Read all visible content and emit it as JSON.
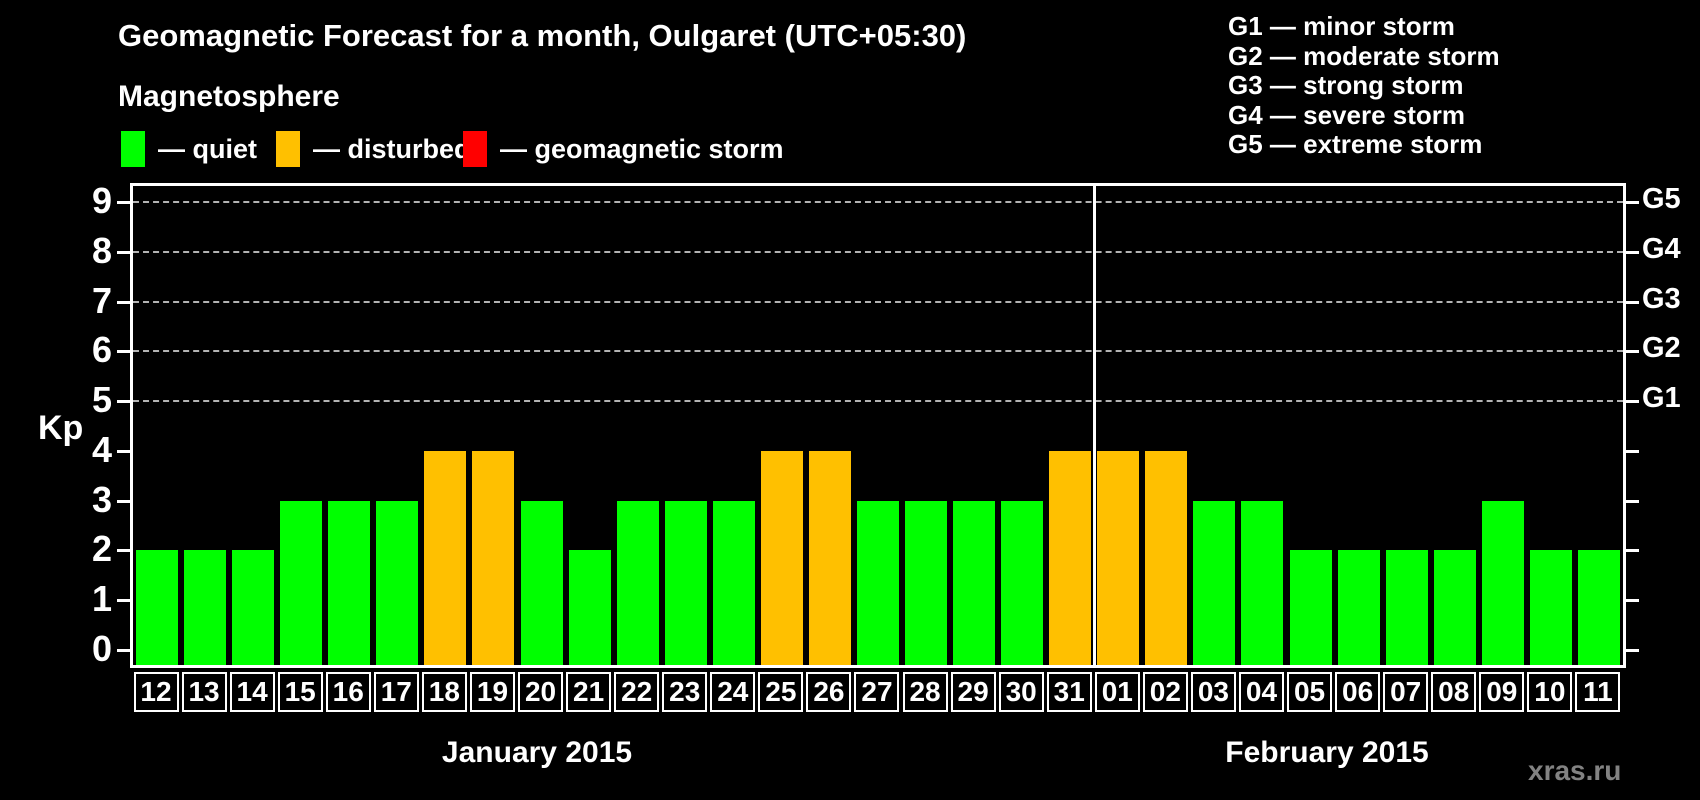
{
  "watermark": "xras.ru",
  "legend": {
    "heading": "Magnetosphere",
    "items": [
      {
        "name": "quiet",
        "label": "— quiet",
        "color": "#00ff00"
      },
      {
        "name": "disturbed",
        "label": "— disturbed",
        "color": "#ffc000"
      },
      {
        "name": "storm",
        "label": "— geomagnetic storm",
        "color": "#ff0000"
      }
    ]
  },
  "g_scale_legend": [
    "G1 — minor storm",
    "G2 — moderate storm",
    "G3 — strong storm",
    "G4 — severe storm",
    "G5 — extreme storm"
  ],
  "chart_data": {
    "type": "bar",
    "title": "Geomagnetic Forecast for a month, Oulgaret (UTC+05:30)",
    "ylabel": "Kp",
    "ylim": [
      0,
      9
    ],
    "y_ticks": [
      0,
      1,
      2,
      3,
      4,
      5,
      6,
      7,
      8,
      9
    ],
    "gridlines_at": [
      5,
      6,
      7,
      8,
      9
    ],
    "grid_style": "dashed",
    "legend_position": "top",
    "right_axis": [
      {
        "kp": 5,
        "label": "G1"
      },
      {
        "kp": 6,
        "label": "G2"
      },
      {
        "kp": 7,
        "label": "G3"
      },
      {
        "kp": 8,
        "label": "G4"
      },
      {
        "kp": 9,
        "label": "G5"
      }
    ],
    "state_colors": {
      "quiet": "#00ff00",
      "disturbed": "#ffc000",
      "storm": "#ff0000"
    },
    "months": [
      {
        "label": "January 2015",
        "days": [
          "12",
          "13",
          "14",
          "15",
          "16",
          "17",
          "18",
          "19",
          "20",
          "21",
          "22",
          "23",
          "24",
          "25",
          "26",
          "27",
          "28",
          "29",
          "30",
          "31"
        ],
        "kp": [
          2,
          2,
          2,
          3,
          3,
          3,
          4,
          4,
          3,
          2,
          3,
          3,
          3,
          4,
          4,
          3,
          3,
          3,
          3,
          4
        ]
      },
      {
        "label": "February 2015",
        "days": [
          "01",
          "02",
          "03",
          "04",
          "05",
          "06",
          "07",
          "08",
          "09",
          "10",
          "11"
        ],
        "kp": [
          4,
          4,
          3,
          3,
          2,
          2,
          2,
          2,
          3,
          2,
          2
        ]
      }
    ]
  }
}
